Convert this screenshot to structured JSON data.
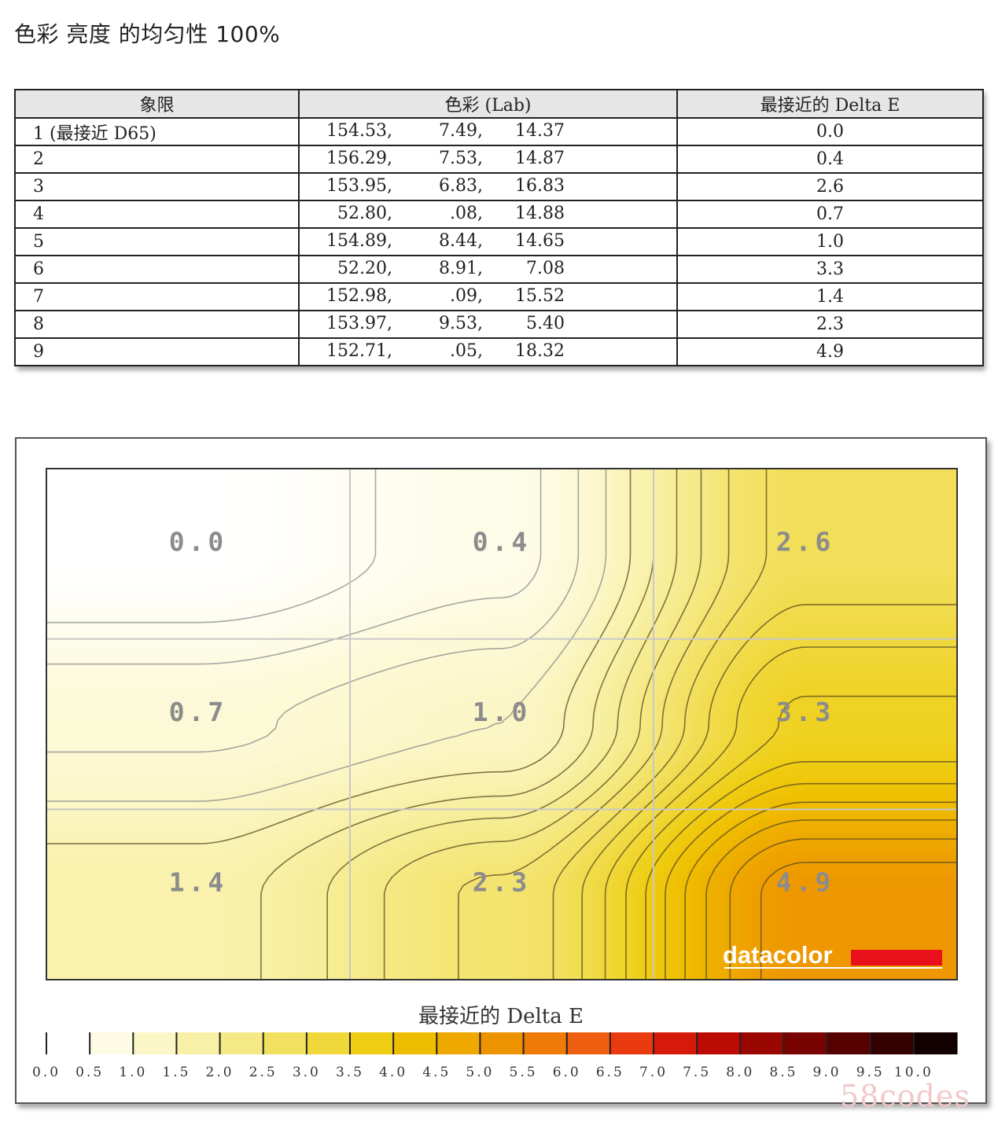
{
  "page": {
    "title": "色彩 亮度 的均匀性 100%"
  },
  "table": {
    "headers": [
      "象限",
      "色彩 (Lab)",
      "最接近的 Delta E"
    ],
    "rows": [
      {
        "quadrant": "1 (最接近 D65)",
        "L": "154.53,",
        "a": "7.49,",
        "b": "14.37",
        "delta_e": "0.0"
      },
      {
        "quadrant": "2",
        "L": "156.29,",
        "a": "7.53,",
        "b": "14.87",
        "delta_e": "0.4"
      },
      {
        "quadrant": "3",
        "L": "153.95,",
        "a": "6.83,",
        "b": "16.83",
        "delta_e": "2.6"
      },
      {
        "quadrant": "4",
        "L": "52.80,",
        "a": ".08,",
        "b": "14.88",
        "delta_e": "0.7"
      },
      {
        "quadrant": "5",
        "L": "154.89,",
        "a": "8.44,",
        "b": "14.65",
        "delta_e": "1.0"
      },
      {
        "quadrant": "6",
        "L": "52.20,",
        "a": "8.91,",
        "b": "7.08",
        "delta_e": "3.3"
      },
      {
        "quadrant": "7",
        "L": "152.98,",
        "a": ".09,",
        "b": "15.52",
        "delta_e": "1.4"
      },
      {
        "quadrant": "8",
        "L": "153.97,",
        "a": "9.53,",
        "b": "5.40",
        "delta_e": "2.3"
      },
      {
        "quadrant": "9",
        "L": "152.71,",
        "a": ".05,",
        "b": "18.32",
        "delta_e": "4.9"
      }
    ]
  },
  "chart_data": {
    "type": "heatmap",
    "grid": {
      "rows": 3,
      "cols": 3
    },
    "values": [
      [
        0.0,
        0.4,
        2.6
      ],
      [
        0.7,
        1.0,
        3.3
      ],
      [
        1.4,
        2.3,
        4.9
      ]
    ],
    "value_labels": [
      [
        "0.0",
        "0.4",
        "2.6"
      ],
      [
        "0.7",
        "1.0",
        "3.3"
      ],
      [
        "1.4",
        "2.3",
        "4.9"
      ]
    ],
    "colorbar": {
      "title": "最接近的 Delta E",
      "min": 0,
      "max": 10,
      "step": 0.5,
      "tick_labels": [
        "0.0",
        "0.5",
        "1.0",
        "1.5",
        "2.0",
        "2.5",
        "3.0",
        "3.5",
        "4.0",
        "4.5",
        "5.0",
        "5.5",
        "6.0",
        "6.5",
        "7.0",
        "7.5",
        "8.0",
        "8.5",
        "9.0",
        "9.5",
        "10.0"
      ],
      "colors": [
        "#ffffff",
        "#fdfbe3",
        "#fbf6c6",
        "#f8f0a6",
        "#f5e985",
        "#f2e060",
        "#f0d83a",
        "#efcd12",
        "#efbd00",
        "#eea800",
        "#ee9300",
        "#ee7a08",
        "#ee5e10",
        "#ea3a10",
        "#d61a0a",
        "#bc0a04",
        "#9a0600",
        "#780300",
        "#560100",
        "#340000",
        "#120000"
      ]
    },
    "contour_levels": [
      0.25,
      0.5,
      0.75,
      1.0,
      1.25,
      1.5,
      1.75,
      2.0,
      2.25,
      2.5,
      2.75,
      3.0,
      3.25,
      3.5,
      3.75,
      4.0,
      4.25,
      4.5,
      4.75,
      5.0
    ],
    "grid_lines": true
  },
  "brand": {
    "logo_text": "datacolor",
    "accent": "#e8101a"
  },
  "watermark": "58codes"
}
